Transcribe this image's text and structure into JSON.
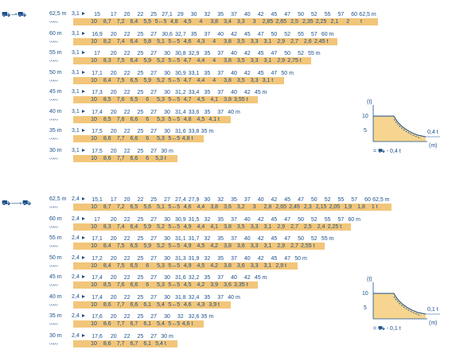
{
  "top_icon": "⛟↝⛟",
  "bottom_icon": "⛟⟶⛟",
  "wave_text": "〰〰",
  "t_unit": "t",
  "m_unit": "m",
  "top_table": [
    {
      "jib": "62,5 m",
      "rad": "3,1",
      "radii": [
        "15",
        "17",
        "20",
        "22",
        "25",
        "27,1",
        "29",
        "30",
        "32",
        "35",
        "37",
        "40",
        "42",
        "45",
        "47",
        "50",
        "52",
        "55",
        "57",
        "60",
        "62,5 m"
      ],
      "loads": [
        "10",
        "8,7",
        "7,2",
        "6,4",
        "5,5",
        "5↔5",
        "4,8",
        "4,5",
        "4",
        "3,8",
        "3,4",
        "3,3",
        "3",
        "2,85",
        "2,65",
        "2,5",
        "2,35",
        "2,25",
        "2,1",
        "2",
        "t"
      ]
    },
    {
      "jib": "60 m",
      "rad": "3,1",
      "radii": [
        "16,9",
        "20",
        "22",
        "25",
        "27",
        "30,6",
        "32,7",
        "35",
        "37",
        "40",
        "42",
        "45",
        "47",
        "50",
        "52",
        "55",
        "57",
        "60 m"
      ],
      "loads": [
        "10",
        "8,2",
        "7,4",
        "6,4",
        "5,8",
        "5,1",
        "5↔5",
        "4,6",
        "4,3",
        "4",
        "3,8",
        "3,5",
        "3,3",
        "3,1",
        "2,9",
        "2,7",
        "2,6",
        "2,45 t"
      ]
    },
    {
      "jib": "55 m",
      "rad": "3,1",
      "radii": [
        "17",
        "20",
        "22",
        "25",
        "27",
        "30",
        "30,8",
        "32,9",
        "35",
        "37",
        "40",
        "42",
        "45",
        "47",
        "50",
        "52",
        "55 m"
      ],
      "loads": [
        "10",
        "8,3",
        "7,5",
        "6,4",
        "5,9",
        "5,2",
        "5↔5",
        "4,7",
        "4,4",
        "4",
        "3,8",
        "3,5",
        "3,3",
        "3,1",
        "2,9",
        "2,75 t"
      ]
    },
    {
      "jib": "50 m",
      "rad": "3,1",
      "radii": [
        "17,1",
        "20",
        "22",
        "25",
        "27",
        "30",
        "30,9",
        "33,1",
        "35",
        "37",
        "40",
        "42",
        "45",
        "47",
        "50 m"
      ],
      "loads": [
        "10",
        "8,4",
        "7,5",
        "6,5",
        "5,9",
        "5,2",
        "5↔5",
        "4,7",
        "4,4",
        "4",
        "3,8",
        "3,5",
        "3,3",
        "3,1 t"
      ]
    },
    {
      "jib": "45 m",
      "rad": "3,1",
      "radii": [
        "17,3",
        "20",
        "22",
        "25",
        "27",
        "30",
        "31,2",
        "33,4",
        "35",
        "37",
        "40",
        "42",
        "45 m"
      ],
      "loads": [
        "10",
        "8,5",
        "7,6",
        "6,5",
        "6",
        "5,3",
        "5↔5",
        "4,7",
        "4,5",
        "4,1",
        "3,8",
        "3,55 t"
      ]
    },
    {
      "jib": "40 m",
      "rad": "3,1",
      "radii": [
        "17,4",
        "20",
        "22",
        "25",
        "27",
        "30",
        "31,4",
        "33,6",
        "35",
        "37",
        "40 m"
      ],
      "loads": [
        "10",
        "8,5",
        "7,6",
        "6,6",
        "6",
        "5,3",
        "5↔5",
        "4,8",
        "4,5",
        "4,1 t"
      ]
    },
    {
      "jib": "35 m",
      "rad": "3,1",
      "radii": [
        "17,5",
        "20",
        "22",
        "25",
        "27",
        "30",
        "31,6",
        "33,8",
        "35 m"
      ],
      "loads": [
        "10",
        "8,6",
        "7,7",
        "6,6",
        "6",
        "5,3",
        "5↔5",
        "4,8 t"
      ]
    },
    {
      "jib": "30 m",
      "rad": "3,1",
      "radii": [
        "17,5",
        "20",
        "22",
        "25",
        "27",
        "30 m"
      ],
      "loads": [
        "10",
        "8,6",
        "7,7",
        "6,6",
        "6",
        "5,3 t"
      ]
    }
  ],
  "bottom_table": [
    {
      "jib": "62,5 m",
      "rad": "2,4",
      "radii": [
        "15,1",
        "17",
        "20",
        "22",
        "25",
        "27",
        "27,4",
        "27,9",
        "30",
        "32",
        "35",
        "37",
        "40",
        "42",
        "45",
        "47",
        "50",
        "52",
        "55",
        "57",
        "60",
        "62,5 m"
      ],
      "loads": [
        "10",
        "8,7",
        "7,2",
        "6,5",
        "5,6",
        "5,1",
        "5↔5",
        "4,6",
        "4,4",
        "3,8",
        "3,6",
        "3,2",
        "3",
        "2,8",
        "2,65",
        "2,45",
        "2,3",
        "2,15",
        "2,05",
        "1,9",
        "1,8",
        "1 t"
      ]
    },
    {
      "jib": "60 m",
      "rad": "2,4",
      "radii": [
        "17",
        "20",
        "22",
        "25",
        "27",
        "30",
        "30,9",
        "31,5",
        "32",
        "35",
        "37",
        "40",
        "42",
        "45",
        "47",
        "50",
        "52",
        "55",
        "57",
        "60 m"
      ],
      "loads": [
        "10",
        "8,3",
        "7,4",
        "6,4",
        "5,9",
        "5,2",
        "5↔5",
        "4,9",
        "4,4",
        "4,1",
        "3,8",
        "3,5",
        "3,3",
        "3,1",
        "2,9",
        "2,7",
        "2,5",
        "2,4",
        "2,25 t"
      ]
    },
    {
      "jib": "55 m",
      "rad": "2,4",
      "radii": [
        "17,1",
        "20",
        "22",
        "25",
        "27",
        "30",
        "31,1",
        "31,7",
        "32",
        "35",
        "37",
        "40",
        "42",
        "45",
        "47",
        "50",
        "52",
        "55 m"
      ],
      "loads": [
        "10",
        "8,4",
        "7,5",
        "6,5",
        "5,9",
        "5,2",
        "5↔5",
        "4,9",
        "4,5",
        "4,2",
        "3,8",
        "3,6",
        "3,3",
        "3,1",
        "2,9",
        "2,7",
        "2,55 t"
      ]
    },
    {
      "jib": "50 m",
      "rad": "2,4",
      "radii": [
        "17,2",
        "20",
        "22",
        "25",
        "27",
        "30",
        "31,3",
        "31,9",
        "32",
        "35",
        "37",
        "40",
        "42",
        "45",
        "47",
        "50 m"
      ],
      "loads": [
        "10",
        "8,4",
        "7,5",
        "6,5",
        "6",
        "5,3",
        "5↔5",
        "4,9",
        "4,5",
        "4,2",
        "3,8",
        "3,6",
        "3,3",
        "3,1",
        "2,9 t"
      ]
    },
    {
      "jib": "45 m",
      "rad": "2,4",
      "radii": [
        "17,4",
        "20",
        "22",
        "25",
        "27",
        "30",
        "31,6",
        "32,2",
        "35",
        "37",
        "40",
        "42",
        "45 m"
      ],
      "loads": [
        "10",
        "8,5",
        "7,6",
        "6,6",
        "6",
        "5,3",
        "5↔5",
        "4,5",
        "4,2",
        "3,9",
        "3,6",
        "3,35 t"
      ]
    },
    {
      "jib": "40 m",
      "rad": "2,4",
      "radii": [
        "17,4",
        "20",
        "22",
        "25",
        "27",
        "30",
        "31,8",
        "32,4",
        "35",
        "37",
        "40 m"
      ],
      "loads": [
        "10",
        "8,6",
        "7,7",
        "6,6",
        "6,1",
        "5,4",
        "5↔5",
        "4,6",
        "4,3",
        "3,9 t"
      ]
    },
    {
      "jib": "35 m",
      "rad": "2,4",
      "radii": [
        "17,6",
        "20",
        "22",
        "25",
        "27",
        "30",
        "32",
        "32,6",
        "35 m"
      ],
      "loads": [
        "10",
        "8,6",
        "7,7",
        "6,7",
        "6,1",
        "5,4",
        "5↔5",
        "4,6 t"
      ]
    },
    {
      "jib": "30 m",
      "rad": "2,4",
      "radii": [
        "17,6",
        "20",
        "22",
        "25",
        "27",
        "30 m"
      ],
      "loads": [
        "10",
        "8,6",
        "7,7",
        "6,7",
        "6,1",
        "5,4 t"
      ]
    }
  ],
  "diagram_top": {
    "y_label": "(t)",
    "y_ticks": [
      "10",
      "5"
    ],
    "x_label": "(m)",
    "right_value": "0,4 t",
    "legend": "= ⛟ - 0,4 t"
  },
  "diagram_bottom": {
    "y_label": "(t)",
    "y_ticks": [
      "10",
      "5"
    ],
    "x_label": "(m)",
    "right_value": "0,1 t",
    "legend": "= ⛟ - 0,1 t"
  },
  "colors": {
    "text": "#1b4f8a",
    "bar": "#f2c67a",
    "fill": "#f5d58f"
  }
}
